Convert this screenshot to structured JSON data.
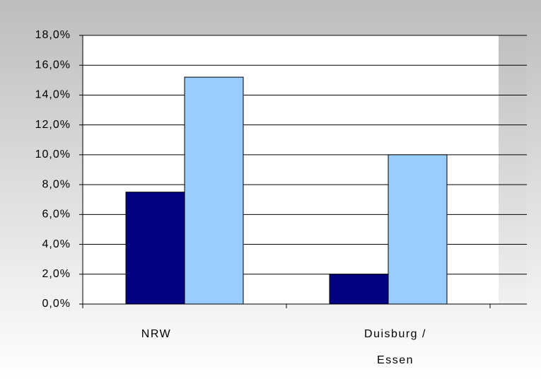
{
  "chart_data": {
    "type": "bar",
    "categories": [
      "NRW",
      "Duisburg / Essen"
    ],
    "series": [
      {
        "color": "#000080",
        "values": [
          7.5,
          2.0
        ]
      },
      {
        "color": "#99ccff",
        "values": [
          15.2,
          10.0
        ]
      }
    ],
    "ylim": [
      0,
      18
    ],
    "yticks": [
      {
        "value": 0,
        "label": "0,0%"
      },
      {
        "value": 2,
        "label": "2,0%"
      },
      {
        "value": 4,
        "label": "4,0%"
      },
      {
        "value": 6,
        "label": "6,0%"
      },
      {
        "value": 8,
        "label": "8,0%"
      },
      {
        "value": 10,
        "label": "10,0%"
      },
      {
        "value": 12,
        "label": "12,0%"
      },
      {
        "value": 14,
        "label": "14,0%"
      },
      {
        "value": 16,
        "label": "16,0%"
      },
      {
        "value": 18,
        "label": "18,0%"
      }
    ],
    "grid": true
  }
}
